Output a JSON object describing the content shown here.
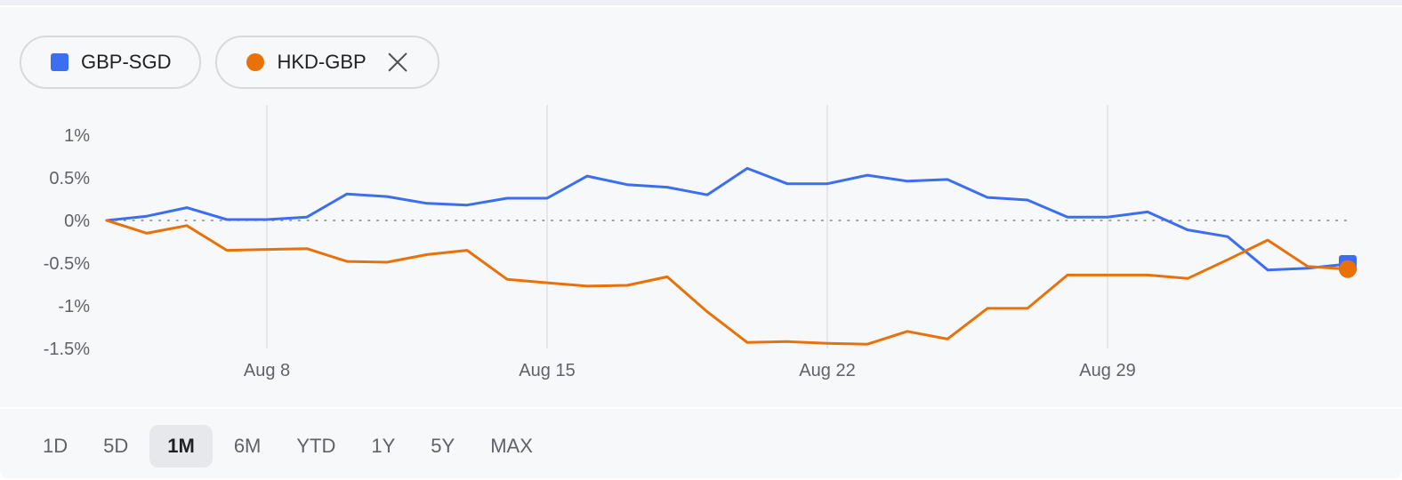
{
  "legend": {
    "chips": [
      {
        "label": "GBP-SGD",
        "color": "#3b6ef0",
        "marker": "square",
        "removable": false
      },
      {
        "label": "HKD-GBP",
        "color": "#e8710a",
        "marker": "circle",
        "removable": true
      }
    ]
  },
  "range_tabs": {
    "items": [
      "1D",
      "5D",
      "1M",
      "6M",
      "YTD",
      "1Y",
      "5Y",
      "MAX"
    ],
    "selected": "1M"
  },
  "chart_data": {
    "type": "line",
    "y_unit": "%",
    "ylim": [
      -1.5,
      1
    ],
    "y_ticks": [
      1,
      0.5,
      0,
      -0.5,
      -1,
      -1.5
    ],
    "y_tick_labels": [
      "1%",
      "0.5%",
      "0%",
      "-0.5%",
      "-1%",
      "-1.5%"
    ],
    "xlim": [
      "Aug 4",
      "Sep 5"
    ],
    "x_ticks": [
      "Aug 8",
      "Aug 15",
      "Aug 22",
      "Aug 29"
    ],
    "x_tick_dates": [
      "08-08",
      "08-15",
      "08-22",
      "08-29"
    ],
    "x_start": "08-04",
    "vertical_gridlines": true,
    "zero_line": "dotted",
    "series": [
      {
        "name": "GBP-SGD",
        "color": "#3b6ef0",
        "end_marker": "square",
        "points": [
          [
            "08-04",
            0
          ],
          [
            "08-05",
            0.05
          ],
          [
            "08-06",
            0.15
          ],
          [
            "08-07",
            0.01
          ],
          [
            "08-08",
            0.01
          ],
          [
            "08-09",
            0.04
          ],
          [
            "08-10",
            0.31
          ],
          [
            "08-11",
            0.28
          ],
          [
            "08-12",
            0.2
          ],
          [
            "08-13",
            0.18
          ],
          [
            "08-14",
            0.26
          ],
          [
            "08-15",
            0.26
          ],
          [
            "08-16",
            0.52
          ],
          [
            "08-17",
            0.42
          ],
          [
            "08-18",
            0.39
          ],
          [
            "08-19",
            0.3
          ],
          [
            "08-20",
            0.61
          ],
          [
            "08-21",
            0.43
          ],
          [
            "08-22",
            0.43
          ],
          [
            "08-23",
            0.53
          ],
          [
            "08-24",
            0.46
          ],
          [
            "08-25",
            0.48
          ],
          [
            "08-26",
            0.27
          ],
          [
            "08-27",
            0.24
          ],
          [
            "08-28",
            0.04
          ],
          [
            "08-29",
            0.04
          ],
          [
            "08-30",
            0.1
          ],
          [
            "08-31",
            -0.11
          ],
          [
            "09-01",
            -0.19
          ],
          [
            "09-02",
            -0.58
          ],
          [
            "09-03",
            -0.56
          ],
          [
            "09-04",
            -0.51
          ]
        ]
      },
      {
        "name": "HKD-GBP",
        "color": "#e8710a",
        "end_marker": "circle",
        "points": [
          [
            "08-04",
            0
          ],
          [
            "08-05",
            -0.15
          ],
          [
            "08-06",
            -0.06
          ],
          [
            "08-07",
            -0.35
          ],
          [
            "08-08",
            -0.34
          ],
          [
            "08-09",
            -0.33
          ],
          [
            "08-10",
            -0.48
          ],
          [
            "08-11",
            -0.49
          ],
          [
            "08-12",
            -0.4
          ],
          [
            "08-13",
            -0.35
          ],
          [
            "08-14",
            -0.69
          ],
          [
            "08-15",
            -0.73
          ],
          [
            "08-16",
            -0.77
          ],
          [
            "08-17",
            -0.76
          ],
          [
            "08-18",
            -0.66
          ],
          [
            "08-19",
            -1.07
          ],
          [
            "08-20",
            -1.43
          ],
          [
            "08-21",
            -1.42
          ],
          [
            "08-22",
            -1.44
          ],
          [
            "08-23",
            -1.45
          ],
          [
            "08-24",
            -1.3
          ],
          [
            "08-25",
            -1.39
          ],
          [
            "08-26",
            -1.03
          ],
          [
            "08-27",
            -1.03
          ],
          [
            "08-28",
            -0.64
          ],
          [
            "08-29",
            -0.64
          ],
          [
            "08-30",
            -0.64
          ],
          [
            "08-31",
            -0.68
          ],
          [
            "09-01",
            -0.46
          ],
          [
            "09-02",
            -0.23
          ],
          [
            "09-03",
            -0.54
          ],
          [
            "09-04",
            -0.57
          ]
        ]
      }
    ]
  }
}
